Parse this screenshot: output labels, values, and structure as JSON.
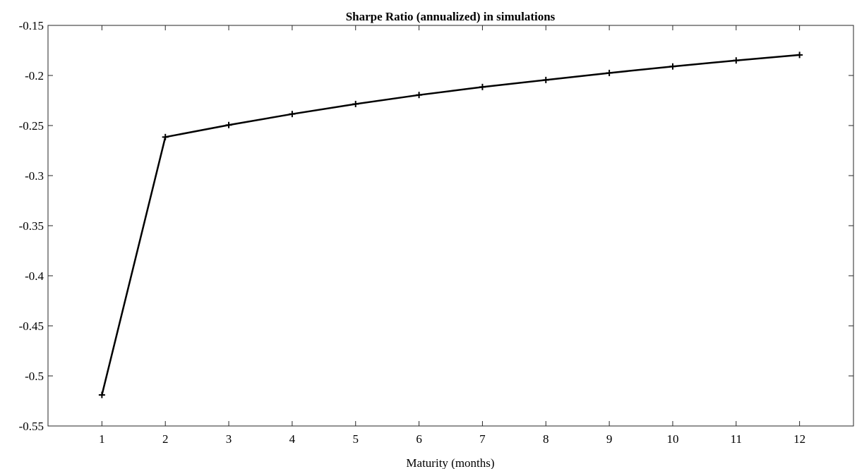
{
  "chart_data": {
    "type": "line",
    "title": "Sharpe Ratio (annualized) in simulations",
    "xlabel": "Maturity (months)",
    "ylabel": "",
    "xlim": [
      0.15,
      12.85
    ],
    "ylim": [
      -0.55,
      -0.15
    ],
    "x_ticks": [
      1,
      2,
      3,
      4,
      5,
      6,
      7,
      8,
      9,
      10,
      11,
      12
    ],
    "x_tick_labels": [
      "1",
      "2",
      "3",
      "4",
      "5",
      "6",
      "7",
      "8",
      "9",
      "10",
      "11",
      "12"
    ],
    "y_ticks": [
      -0.15,
      -0.2,
      -0.25,
      -0.3,
      -0.35,
      -0.4,
      -0.45,
      -0.5,
      -0.55
    ],
    "y_tick_labels": [
      "-0.15",
      "-0.2",
      "-0.25",
      "-0.3",
      "-0.35",
      "-0.4",
      "-0.45",
      "-0.5",
      "-0.55"
    ],
    "grid": false,
    "marker": "+",
    "line_color": "#000000",
    "series": [
      {
        "x": [
          1,
          2,
          3,
          4,
          5,
          6,
          7,
          8,
          9,
          10,
          11,
          12
        ],
        "values": [
          -0.519,
          -0.2615,
          -0.2495,
          -0.2385,
          -0.2285,
          -0.2195,
          -0.2115,
          -0.2045,
          -0.1975,
          -0.191,
          -0.185,
          -0.1795
        ]
      }
    ]
  }
}
